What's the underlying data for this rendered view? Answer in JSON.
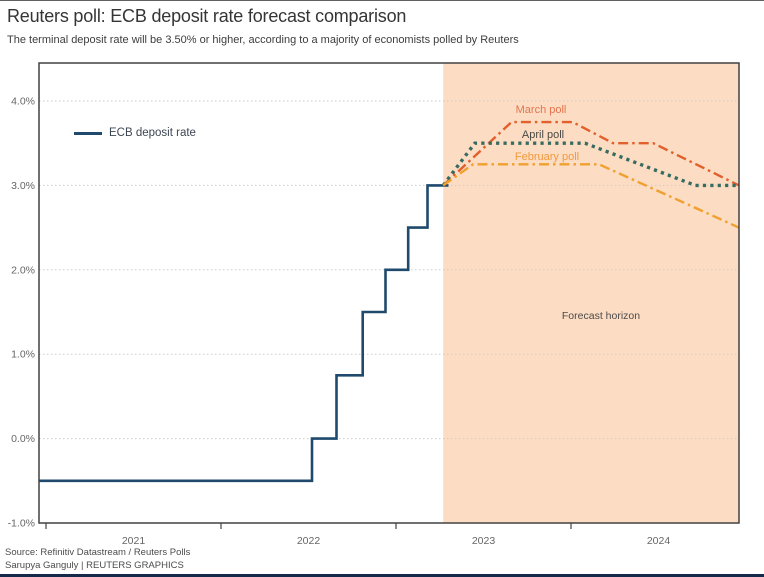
{
  "header": {
    "title": "Reuters poll: ECB deposit rate forecast comparison",
    "subtitle": "The terminal deposit rate will be 3.50% or higher, according to a majority of economists polled by Reuters"
  },
  "legend": {
    "label": "ECB deposit rate"
  },
  "annotations": {
    "march_poll": "March poll",
    "april_poll": "April poll",
    "february_poll": "February poll",
    "forecast_horizon": "Forecast horizon"
  },
  "footer": {
    "source": "Source: Refinitiv Datastream / Reuters Polls",
    "credit": "Sarupya Ganguly | REUTERS GRAPHICS"
  },
  "colors": {
    "ecb_line": "#1f4a6e",
    "march_line": "#e1602b",
    "march_label": "#e4744e",
    "april_line": "#366b5f",
    "april_label": "#4a4a44",
    "february_line": "#f0a02f",
    "february_label": "#f09a3e",
    "forecast_shade": "#fcdcc3",
    "grid": "#cbcbcb",
    "frame": "#414141",
    "axis_text": "#666666",
    "horizon_text": "#4a4a4a",
    "bottom_bar": "#15294a"
  },
  "chart_data": {
    "type": "line",
    "title": "Reuters poll: ECB deposit rate forecast comparison",
    "subtitle": "The terminal deposit rate will be 3.50% or higher, according to a majority of economists polled by Reuters",
    "xlabel": "",
    "ylabel": "",
    "xlim": [
      2020.96,
      2024.96
    ],
    "ylim": [
      -1.0,
      4.45
    ],
    "grid": "dotted-horizontal",
    "forecast_region": {
      "label": "Forecast horizon",
      "start_x": 2023.27,
      "end_x": 2024.96
    },
    "xticks": [
      2021,
      2022,
      2023,
      2024
    ],
    "xticklabels": [
      "2021",
      "2022",
      "2023",
      "2024"
    ],
    "yticks": [
      -1,
      0,
      1,
      2,
      3,
      4
    ],
    "yticklabels": [
      "-1.0%",
      "0.0%",
      "1.0%",
      "2.0%",
      "3.0%",
      "4.0%"
    ],
    "series": [
      {
        "name": "ECB deposit rate",
        "id": "ecb",
        "style": "solid",
        "width": 2.6,
        "color_key": "ecb_line",
        "points": [
          [
            2020.96,
            -0.5
          ],
          [
            2022.52,
            -0.5
          ],
          [
            2022.52,
            0.0
          ],
          [
            2022.66,
            0.0
          ],
          [
            2022.66,
            0.75
          ],
          [
            2022.81,
            0.75
          ],
          [
            2022.81,
            1.5
          ],
          [
            2022.94,
            1.5
          ],
          [
            2022.94,
            2.0
          ],
          [
            2023.07,
            2.0
          ],
          [
            2023.07,
            2.5
          ],
          [
            2023.18,
            2.5
          ],
          [
            2023.18,
            3.0
          ],
          [
            2023.3,
            3.0
          ]
        ]
      },
      {
        "name": "March poll",
        "id": "march",
        "style": "dashdot",
        "width": 2.4,
        "color_key": "march_line",
        "points": [
          [
            2023.27,
            3.0
          ],
          [
            2023.66,
            3.75
          ],
          [
            2024.01,
            3.75
          ],
          [
            2024.24,
            3.5
          ],
          [
            2024.47,
            3.5
          ],
          [
            2024.96,
            3.0
          ]
        ]
      },
      {
        "name": "April poll",
        "id": "april",
        "style": "dotted",
        "width": 3.4,
        "color_key": "april_line",
        "points": [
          [
            2023.27,
            3.0
          ],
          [
            2023.45,
            3.5
          ],
          [
            2024.08,
            3.5
          ],
          [
            2024.71,
            3.0
          ],
          [
            2024.96,
            3.0
          ]
        ]
      },
      {
        "name": "February poll",
        "id": "february",
        "style": "dashdot",
        "width": 2.4,
        "color_key": "february_line",
        "points": [
          [
            2023.27,
            3.0
          ],
          [
            2023.44,
            3.25
          ],
          [
            2024.16,
            3.25
          ],
          [
            2024.96,
            2.5
          ]
        ]
      }
    ]
  }
}
